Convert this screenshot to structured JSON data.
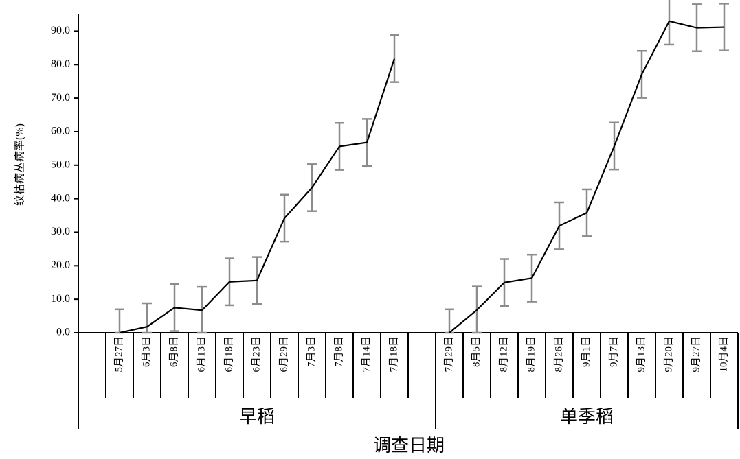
{
  "chart_data": {
    "type": "line",
    "y_label": "纹枯病丛病率(%)",
    "x_label": "调查日期",
    "color": "#000000",
    "error_color": "#8c8c8c",
    "ylim": [
      0,
      95
    ],
    "yticks": [
      {
        "value": 0,
        "label": "0.0"
      },
      {
        "value": 10,
        "label": "10.0"
      },
      {
        "value": 20,
        "label": "20.0"
      },
      {
        "value": 30,
        "label": "30.0"
      },
      {
        "value": 40,
        "label": "40.0"
      },
      {
        "value": 50,
        "label": "50.0"
      },
      {
        "value": 60,
        "label": "60.0"
      },
      {
        "value": 70,
        "label": "70.0"
      },
      {
        "value": 80,
        "label": "80.0"
      },
      {
        "value": 90,
        "label": "90.0"
      }
    ],
    "groups": [
      {
        "name": "早稻",
        "categories": [
          "5月27日",
          "6月3日",
          "6月8日",
          "6月13日",
          "6月18日",
          "6月23日",
          "6月29日",
          "7月3日",
          "7月8日",
          "7月14日",
          "7月18日"
        ],
        "values": [
          0,
          1.8,
          7.5,
          6.7,
          15.2,
          15.6,
          34.2,
          43.3,
          55.6,
          56.8,
          81.8
        ],
        "errors": [
          7,
          7,
          7,
          7,
          7,
          7,
          7,
          7,
          7,
          7,
          7
        ]
      },
      {
        "name": "单季稻",
        "categories": [
          "7月29日",
          "8月5日",
          "8月12日",
          "8月19日",
          "8月26日",
          "9月1日",
          "9月7日",
          "9月13日",
          "9月20日",
          "9月27日",
          "10月4日"
        ],
        "values": [
          0,
          6.8,
          15.0,
          16.3,
          31.9,
          35.8,
          55.7,
          77.1,
          93.0,
          91.0,
          91.2
        ],
        "errors": [
          7,
          7,
          7,
          7,
          7,
          7,
          7,
          7,
          7,
          7,
          7
        ]
      }
    ]
  }
}
